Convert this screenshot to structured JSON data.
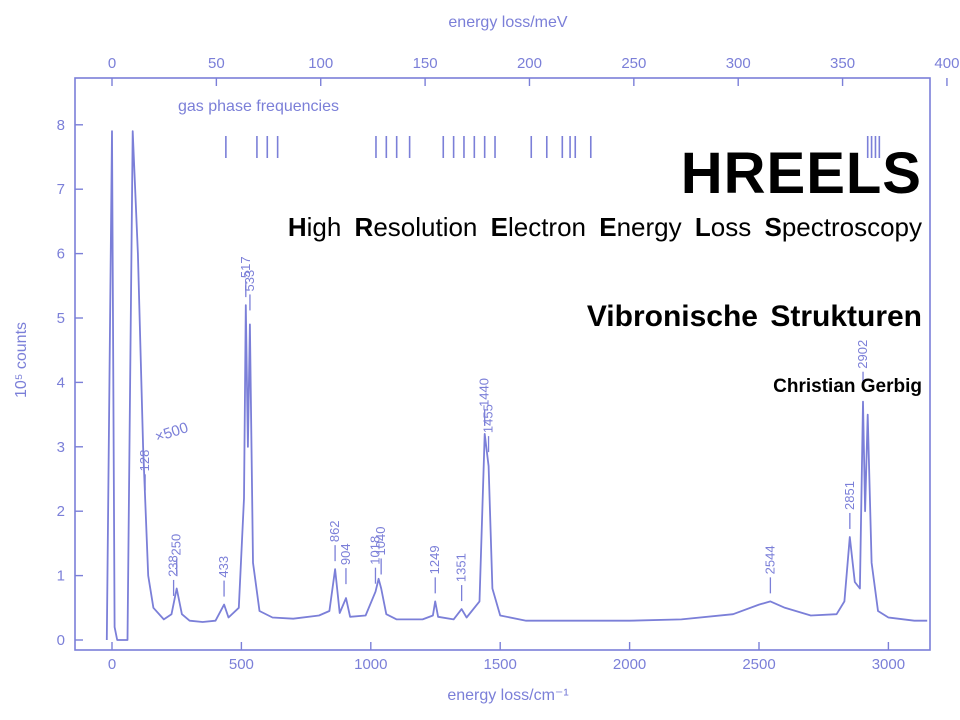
{
  "slide": {
    "title": "HREELS",
    "subtitle_parts": [
      {
        "initial": "H",
        "rest": "igh"
      },
      {
        "initial": "R",
        "rest": "esolution"
      },
      {
        "initial": "E",
        "rest": "lectron"
      },
      {
        "initial": "E",
        "rest": "nergy"
      },
      {
        "initial": "L",
        "rest": "oss"
      },
      {
        "initial": "S",
        "rest": "pectroscopy"
      }
    ],
    "section": "Vibronische Strukturen",
    "author": "Christian Gerbig"
  },
  "colors": {
    "plot": "#7b7fd8",
    "text": "#000000",
    "background": "#ffffff"
  },
  "chart_data": {
    "type": "line",
    "xlabel": "energy loss/cm⁻¹",
    "x2label": "energy loss/meV",
    "ylabel": "10⁵ counts",
    "xlim": [
      -250,
      3200
    ],
    "ylim": [
      0,
      8.5
    ],
    "x_ticks": [
      0,
      500,
      1000,
      1500,
      2000,
      2500,
      3000
    ],
    "x2_ticks": [
      0,
      50,
      100,
      150,
      200,
      250,
      300,
      350,
      400
    ],
    "y_ticks": [
      0,
      1,
      2,
      3,
      4,
      5,
      6,
      7,
      8
    ],
    "grid": false,
    "annotations": {
      "gas_phase_label": "gas phase frequencies",
      "gain_label": "×500"
    },
    "peak_labels": [
      {
        "x": 128,
        "label": "128"
      },
      {
        "x": 238,
        "label": "238"
      },
      {
        "x": 250,
        "label": "250"
      },
      {
        "x": 433,
        "label": "433"
      },
      {
        "x": 517,
        "label": "517"
      },
      {
        "x": 533,
        "label": "533"
      },
      {
        "x": 862,
        "label": "862"
      },
      {
        "x": 904,
        "label": "904"
      },
      {
        "x": 1018,
        "label": "1018"
      },
      {
        "x": 1040,
        "label": "1040"
      },
      {
        "x": 1249,
        "label": "1249"
      },
      {
        "x": 1351,
        "label": "1351"
      },
      {
        "x": 1440,
        "label": "1440"
      },
      {
        "x": 1455,
        "label": "1455"
      },
      {
        "x": 2544,
        "label": "2544"
      },
      {
        "x": 2851,
        "label": "2851"
      },
      {
        "x": 2902,
        "label": "2902"
      }
    ],
    "gas_phase_lines": [
      440,
      560,
      600,
      640,
      1020,
      1060,
      1100,
      1150,
      1280,
      1320,
      1360,
      1400,
      1440,
      1480,
      1620,
      1680,
      1740,
      1770,
      1790,
      1850,
      2920,
      2935,
      2950,
      2965
    ],
    "series": [
      {
        "x": [
          -20,
          0,
          10,
          20,
          60,
          80,
          100,
          120,
          140,
          160,
          200,
          230,
          250,
          270,
          300,
          350,
          400,
          433,
          450,
          490,
          510,
          517,
          525,
          533,
          545,
          570,
          620,
          700,
          800,
          840,
          862,
          880,
          904,
          920,
          980,
          1018,
          1030,
          1040,
          1060,
          1100,
          1200,
          1240,
          1249,
          1260,
          1320,
          1351,
          1370,
          1420,
          1440,
          1455,
          1470,
          1500,
          1600,
          1800,
          2000,
          2200,
          2400,
          2500,
          2544,
          2600,
          2700,
          2800,
          2830,
          2851,
          2870,
          2890,
          2902,
          2910,
          2920,
          2935,
          2960,
          3000,
          3100,
          3150
        ],
        "y": [
          0,
          7.9,
          0.2,
          0,
          0,
          7.9,
          6.0,
          3.0,
          1.0,
          0.5,
          0.32,
          0.4,
          0.8,
          0.4,
          0.3,
          0.28,
          0.3,
          0.55,
          0.35,
          0.5,
          2.2,
          5.2,
          3.0,
          4.9,
          1.2,
          0.45,
          0.35,
          0.33,
          0.38,
          0.45,
          1.1,
          0.42,
          0.65,
          0.36,
          0.38,
          0.75,
          0.95,
          0.8,
          0.4,
          0.32,
          0.32,
          0.38,
          0.6,
          0.36,
          0.32,
          0.48,
          0.35,
          0.6,
          3.2,
          2.7,
          0.8,
          0.38,
          0.3,
          0.3,
          0.3,
          0.32,
          0.4,
          0.55,
          0.6,
          0.5,
          0.38,
          0.4,
          0.6,
          1.6,
          0.9,
          0.8,
          3.7,
          2.0,
          3.5,
          1.2,
          0.45,
          0.35,
          0.3,
          0.3
        ]
      }
    ]
  }
}
